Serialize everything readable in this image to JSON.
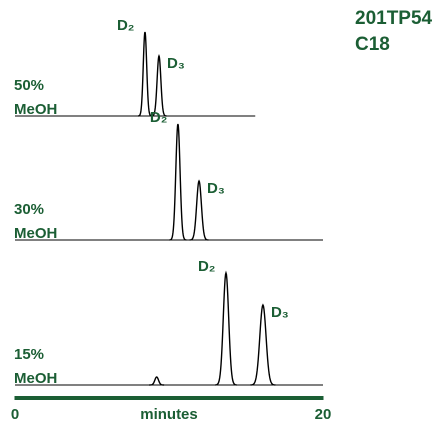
{
  "chart_data": [
    {
      "type": "chromatogram",
      "title": [
        "201TP54",
        "C18"
      ],
      "label": [
        "50%",
        "MeOH"
      ],
      "xlim": [
        0,
        15.6
      ],
      "peaks": [
        {
          "name": "D₂",
          "time": 8.44,
          "height": 84
        },
        {
          "name": "D₃",
          "time": 9.35,
          "height": 60
        }
      ]
    },
    {
      "type": "chromatogram",
      "label": [
        "30%",
        "MeOH"
      ],
      "xlim": [
        0,
        20
      ],
      "peaks": [
        {
          "name": "D₂",
          "time": 10.58,
          "height": 116
        },
        {
          "name": "D₃",
          "time": 11.95,
          "height": 59
        }
      ]
    },
    {
      "type": "chromatogram",
      "label": [
        "15%",
        "MeOH"
      ],
      "xlim": [
        0,
        20
      ],
      "peaks": [
        {
          "name": null,
          "time": 9.2,
          "height": 8
        },
        {
          "name": "D₂",
          "time": 13.7,
          "height": 112
        },
        {
          "name": "D₃",
          "time": 16.1,
          "height": 80
        }
      ],
      "xlabel": "minutes",
      "axis_color": "#1b5e34",
      "xticks": [
        0,
        20
      ]
    }
  ]
}
